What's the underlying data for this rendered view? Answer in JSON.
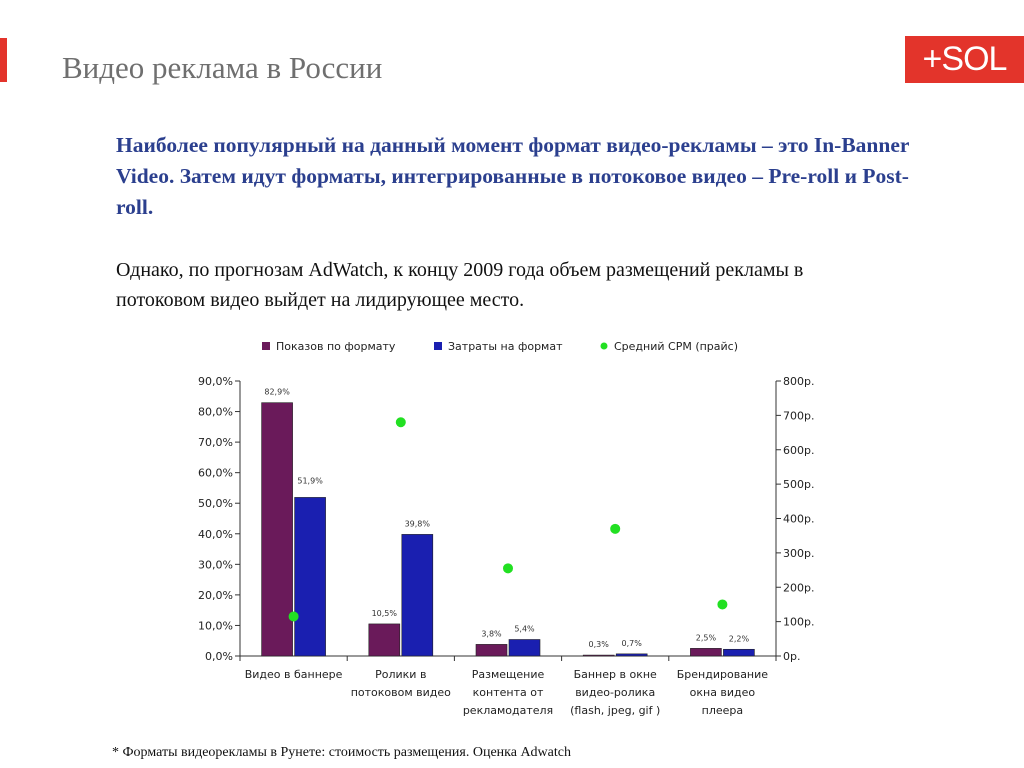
{
  "slide": {
    "title": "Видео реклама в России",
    "logo": "+SOL",
    "lead": "Наиболее популярный на данный момент формат видео-рекламы – это In-Banner Video. Затем идут форматы, интегрированные в потоковое видео – Pre-roll и Post-roll.",
    "body": "Однако, по прогнозам AdWatch, к концу 2009 года объем размещений рекламы в потоковом видео выйдет на лидирующее место.",
    "footnote": "* Форматы видеорекламы в Рунете: стоимость размещения. Оценка Adwatch",
    "accent_color": "#e3342b",
    "lead_color": "#2b3f8e"
  },
  "chart_data": {
    "type": "bar",
    "categories": [
      [
        "Видео в баннере"
      ],
      [
        "Ролики в",
        "потоковом видео"
      ],
      [
        "Размещение",
        "контента от",
        "рекламодателя"
      ],
      [
        "Баннер в окне",
        "видео-ролика",
        "(flash, jpeg, gif )"
      ],
      [
        "Брендирование",
        "окна видео",
        "плеера"
      ]
    ],
    "series": [
      {
        "name": "Показов по формату",
        "values": [
          82.9,
          10.5,
          3.8,
          0.3,
          2.5
        ],
        "labels": [
          "82,9%",
          "10,5%",
          "3,8%",
          "0,3%",
          "2,5%"
        ],
        "color": "#6a1a5a"
      },
      {
        "name": "Затраты на формат",
        "values": [
          51.9,
          39.8,
          5.4,
          0.7,
          2.2
        ],
        "labels": [
          "51,9%",
          "39,8%",
          "5,4%",
          "0,7%",
          "2,2%"
        ],
        "color": "#1a1fb0"
      },
      {
        "name": "Средний CPM (прайс)",
        "values": [
          115,
          680,
          255,
          370,
          150
        ],
        "axis": "right",
        "marker": "dot",
        "color": "#22e022"
      }
    ],
    "y_left": {
      "min": 0,
      "max": 90,
      "ticks": [
        "0,0%",
        "10,0%",
        "20,0%",
        "30,0%",
        "40,0%",
        "50,0%",
        "60,0%",
        "70,0%",
        "80,0%",
        "90,0%"
      ]
    },
    "y_right": {
      "min": 0,
      "max": 800,
      "ticks": [
        "0р.",
        "100р.",
        "200р.",
        "300р.",
        "400р.",
        "500р.",
        "600р.",
        "700р.",
        "800р."
      ]
    },
    "legend_position": "top",
    "grid": false
  }
}
